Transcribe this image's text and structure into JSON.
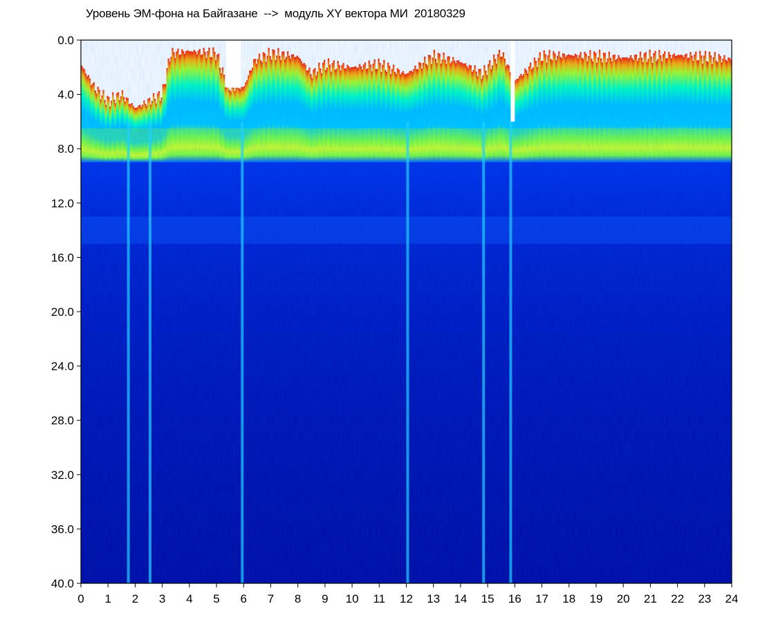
{
  "chart_data": {
    "type": "heatmap",
    "title": "Уровень ЭМ-фона на Байгазане  -->  модуль XY вектора МИ  20180329",
    "xlabel": "",
    "ylabel": "",
    "xlim": [
      0,
      24
    ],
    "ylim": [
      0.0,
      40.0
    ],
    "y_inverted": true,
    "x_ticks": [
      "0",
      "1",
      "2",
      "3",
      "4",
      "5",
      "6",
      "7",
      "8",
      "9",
      "10",
      "11",
      "12",
      "13",
      "14",
      "15",
      "16",
      "17",
      "18",
      "19",
      "20",
      "21",
      "22",
      "23",
      "24"
    ],
    "y_ticks": [
      "0.0",
      "4.0",
      "8.0",
      "12.0",
      "16.0",
      "20.0",
      "24.0",
      "28.0",
      "32.0",
      "36.0",
      "40.0"
    ],
    "colormap": [
      "#0000a8",
      "#0020d8",
      "#0060ff",
      "#00c8ff",
      "#00ffb0",
      "#9cff00",
      "#ffff00",
      "#ff2000"
    ],
    "background_color": "#00008c",
    "grid": false,
    "legend": "none",
    "upper_boundary_by_hour": [
      {
        "x": 0.0,
        "y": 1.8
      },
      {
        "x": 0.5,
        "y": 3.5
      },
      {
        "x": 1.0,
        "y": 4.5
      },
      {
        "x": 1.5,
        "y": 4.0
      },
      {
        "x": 2.0,
        "y": 5.0
      },
      {
        "x": 2.5,
        "y": 4.5
      },
      {
        "x": 3.0,
        "y": 4.0
      },
      {
        "x": 3.3,
        "y": 1.0
      },
      {
        "x": 4.0,
        "y": 0.8
      },
      {
        "x": 5.0,
        "y": 1.0
      },
      {
        "x": 5.4,
        "y": 3.5
      },
      {
        "x": 6.0,
        "y": 3.5
      },
      {
        "x": 6.4,
        "y": 1.5
      },
      {
        "x": 7.0,
        "y": 1.0
      },
      {
        "x": 8.0,
        "y": 1.2
      },
      {
        "x": 8.5,
        "y": 2.5
      },
      {
        "x": 9.0,
        "y": 1.8
      },
      {
        "x": 10.0,
        "y": 2.0
      },
      {
        "x": 11.0,
        "y": 1.8
      },
      {
        "x": 12.0,
        "y": 2.5
      },
      {
        "x": 13.0,
        "y": 1.2
      },
      {
        "x": 14.0,
        "y": 1.6
      },
      {
        "x": 14.8,
        "y": 2.5
      },
      {
        "x": 15.5,
        "y": 0.9
      },
      {
        "x": 16.0,
        "y": 3.0
      },
      {
        "x": 17.0,
        "y": 1.2
      },
      {
        "x": 18.0,
        "y": 1.1
      },
      {
        "x": 20.0,
        "y": 1.3
      },
      {
        "x": 22.0,
        "y": 1.1
      },
      {
        "x": 24.0,
        "y": 1.4
      }
    ],
    "gaps": [
      {
        "x_start": 5.35,
        "x_end": 5.9,
        "y_top": 0.0,
        "y_bottom": 3.5
      },
      {
        "x_start": 15.85,
        "x_end": 16.0,
        "y_top": 0.0,
        "y_bottom": 6.0
      }
    ],
    "quiet_vertical_streaks": [
      1.75,
      2.55,
      5.95,
      12.05,
      14.85,
      15.85
    ],
    "green_band_depth": [
      6.5,
      8.5
    ],
    "secondary_band_depth": [
      13.0,
      15.0
    ]
  }
}
